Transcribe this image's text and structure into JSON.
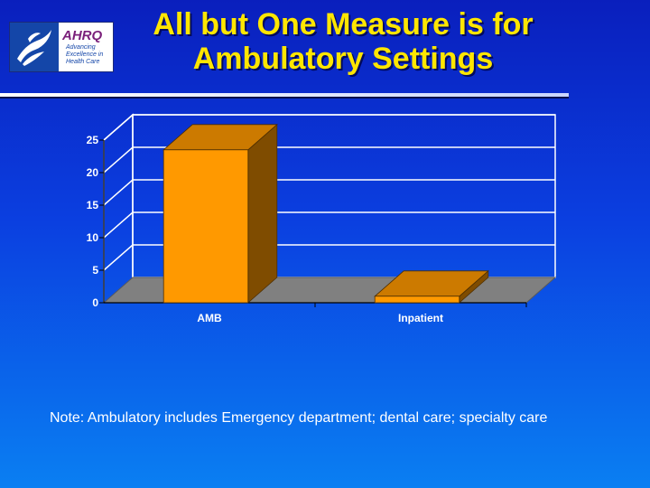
{
  "slide": {
    "title_line1": "All but One Measure is for",
    "title_line2": "Ambulatory Settings",
    "note": "Note:  Ambulatory includes Emergency department; dental care; specialty care",
    "logo": {
      "mark": "AHRQ",
      "tagline_1": "Advancing",
      "tagline_2": "Excellence in",
      "tagline_3": "Health Care",
      "hhs_icon": "hhs-eagle-icon"
    }
  },
  "chart_data": {
    "type": "bar",
    "style": "3d",
    "categories": [
      "AMB",
      "Inpatient"
    ],
    "values": [
      23.5,
      1
    ],
    "title": "",
    "xlabel": "",
    "ylabel": "",
    "ylim": [
      0,
      25
    ],
    "yticks": [
      "0",
      "5",
      "10",
      "15",
      "20",
      "25"
    ],
    "grid": true,
    "legend": "none",
    "colors": {
      "bar_front": "#ff9900",
      "bar_top": "#cc7a00",
      "bar_side": "#7f4c00",
      "floor": "#808080",
      "gridlines": "#ffffff"
    }
  }
}
